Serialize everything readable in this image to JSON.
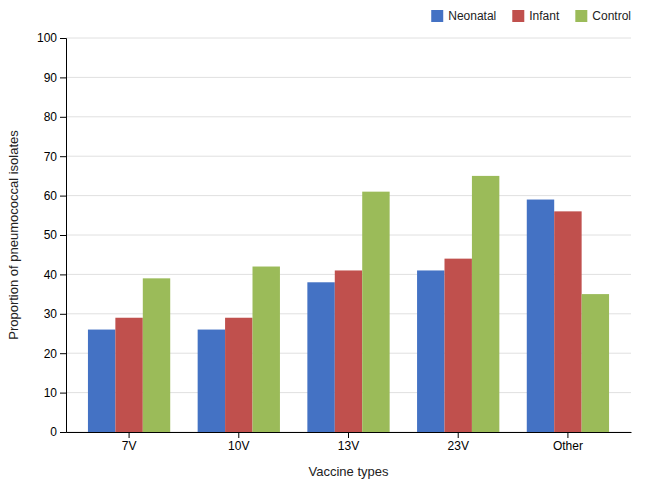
{
  "chart_data": {
    "type": "bar",
    "categories": [
      "7V",
      "10V",
      "13V",
      "23V",
      "Other"
    ],
    "series": [
      {
        "name": "Neonatal",
        "color": "#4472C4",
        "values": [
          26,
          26,
          38,
          41,
          59
        ]
      },
      {
        "name": "Infant",
        "color": "#C0504D",
        "values": [
          29,
          29,
          41,
          44,
          56
        ]
      },
      {
        "name": "Control",
        "color": "#9BBB59",
        "values": [
          39,
          42,
          61,
          65,
          35
        ]
      }
    ],
    "xlabel": "Vaccine types",
    "ylabel": "Proportion of pneumococcal isolates",
    "ylim": [
      0,
      100
    ],
    "yticks": [
      0,
      10,
      20,
      30,
      40,
      50,
      60,
      70,
      80,
      90,
      100
    ],
    "grid": true,
    "legend": "upper-right"
  }
}
